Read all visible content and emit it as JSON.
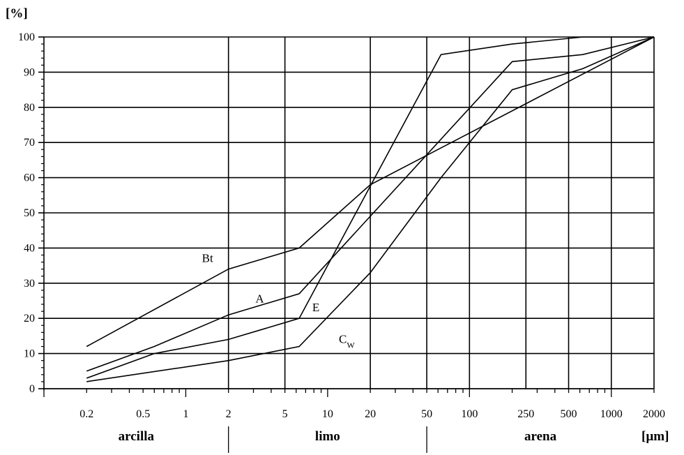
{
  "chart_data": {
    "type": "line",
    "x_scale": "log",
    "ylim": [
      0,
      100
    ],
    "xlim": [
      0.1,
      2000
    ],
    "y_unit_label": "[%]",
    "x_unit_label": "[µm]",
    "y_ticks": [
      0,
      10,
      20,
      30,
      40,
      50,
      60,
      70,
      80,
      90,
      100
    ],
    "x_tick_labels": [
      {
        "value": 0.2,
        "text": "0.2"
      },
      {
        "value": 0.5,
        "text": "0.5"
      },
      {
        "value": 1,
        "text": "1"
      },
      {
        "value": 2,
        "text": "2"
      },
      {
        "value": 5,
        "text": "5"
      },
      {
        "value": 10,
        "text": "10"
      },
      {
        "value": 20,
        "text": "20"
      },
      {
        "value": 50,
        "text": "50"
      },
      {
        "value": 100,
        "text": "100"
      },
      {
        "value": 250,
        "text": "250"
      },
      {
        "value": 500,
        "text": "500"
      },
      {
        "value": 1000,
        "text": "1000"
      },
      {
        "value": 2000,
        "text": "2000"
      }
    ],
    "vertical_gridlines": [
      2,
      5,
      20,
      50,
      100,
      250,
      500,
      1000,
      2000
    ],
    "horizontal_grid": true,
    "regions": [
      {
        "text": "arcilla",
        "from": 0.1,
        "to": 2
      },
      {
        "text": "limo",
        "from": 2,
        "to": 50
      },
      {
        "text": "arena",
        "from": 50,
        "to": 2000
      }
    ],
    "series": [
      {
        "name": "Bt",
        "x": [
          0.2,
          2,
          6.3,
          20,
          2000
        ],
        "y": [
          12,
          34,
          40,
          58,
          100
        ],
        "label_at": {
          "x": 1.3,
          "y": 36
        }
      },
      {
        "name": "A",
        "x": [
          0.2,
          0.6,
          2,
          6.3,
          200,
          630,
          2000
        ],
        "y": [
          5,
          12,
          21,
          27,
          93,
          95,
          100
        ],
        "label_at": {
          "x": 3.1,
          "y": 24.5
        }
      },
      {
        "name": "E",
        "x": [
          0.2,
          0.6,
          2,
          6.3,
          63,
          200,
          630,
          2000
        ],
        "y": [
          3,
          10,
          14,
          20,
          95,
          98,
          100,
          100
        ],
        "label_at": {
          "x": 7.8,
          "y": 22
        }
      },
      {
        "name": "C",
        "sub": "W",
        "x": [
          0.2,
          2,
          6.3,
          20,
          63,
          200,
          630,
          2000
        ],
        "y": [
          2,
          8,
          12,
          33,
          60,
          85,
          91,
          100
        ],
        "label_at": {
          "x": 12,
          "y": 13
        }
      }
    ]
  }
}
